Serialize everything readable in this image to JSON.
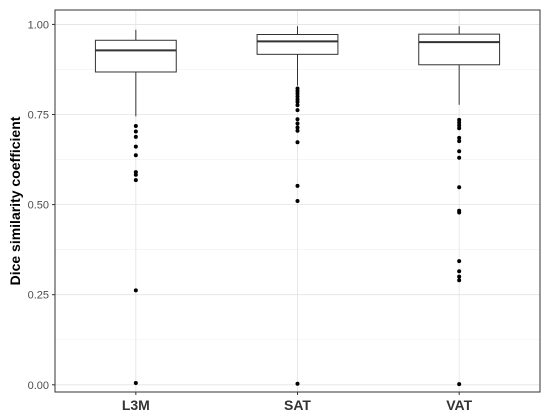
{
  "chart_data": {
    "type": "box",
    "ylabel": "Dice similarity coefficient",
    "xlabel": "",
    "ylim": [
      -0.02,
      1.04
    ],
    "yticks": [
      0.0,
      0.25,
      0.5,
      0.75,
      1.0
    ],
    "ytick_labels": [
      "0.00",
      "0.25",
      "0.50",
      "0.75",
      "1.00"
    ],
    "grid": true,
    "legend": "none",
    "categories": [
      "L3M",
      "SAT",
      "VAT"
    ],
    "boxes": [
      {
        "name": "L3M",
        "whisker_low": 0.745,
        "q1": 0.868,
        "median": 0.928,
        "q3": 0.956,
        "whisker_high": 0.985,
        "outliers": [
          0.718,
          0.703,
          0.688,
          0.661,
          0.637,
          0.59,
          0.583,
          0.568,
          0.262,
          0.005
        ]
      },
      {
        "name": "SAT",
        "whisker_low": 0.83,
        "q1": 0.917,
        "median": 0.953,
        "q3": 0.972,
        "whisker_high": 0.995,
        "outliers": [
          0.822,
          0.815,
          0.808,
          0.8,
          0.792,
          0.785,
          0.776,
          0.762,
          0.737,
          0.725,
          0.714,
          0.705,
          0.673,
          0.552,
          0.51,
          0.003
        ]
      },
      {
        "name": "VAT",
        "whisker_low": 0.777,
        "q1": 0.888,
        "median": 0.951,
        "q3": 0.973,
        "whisker_high": 0.995,
        "outliers": [
          0.735,
          0.728,
          0.72,
          0.712,
          0.685,
          0.676,
          0.648,
          0.63,
          0.548,
          0.483,
          0.478,
          0.343,
          0.315,
          0.3,
          0.29,
          0.002
        ]
      }
    ]
  }
}
